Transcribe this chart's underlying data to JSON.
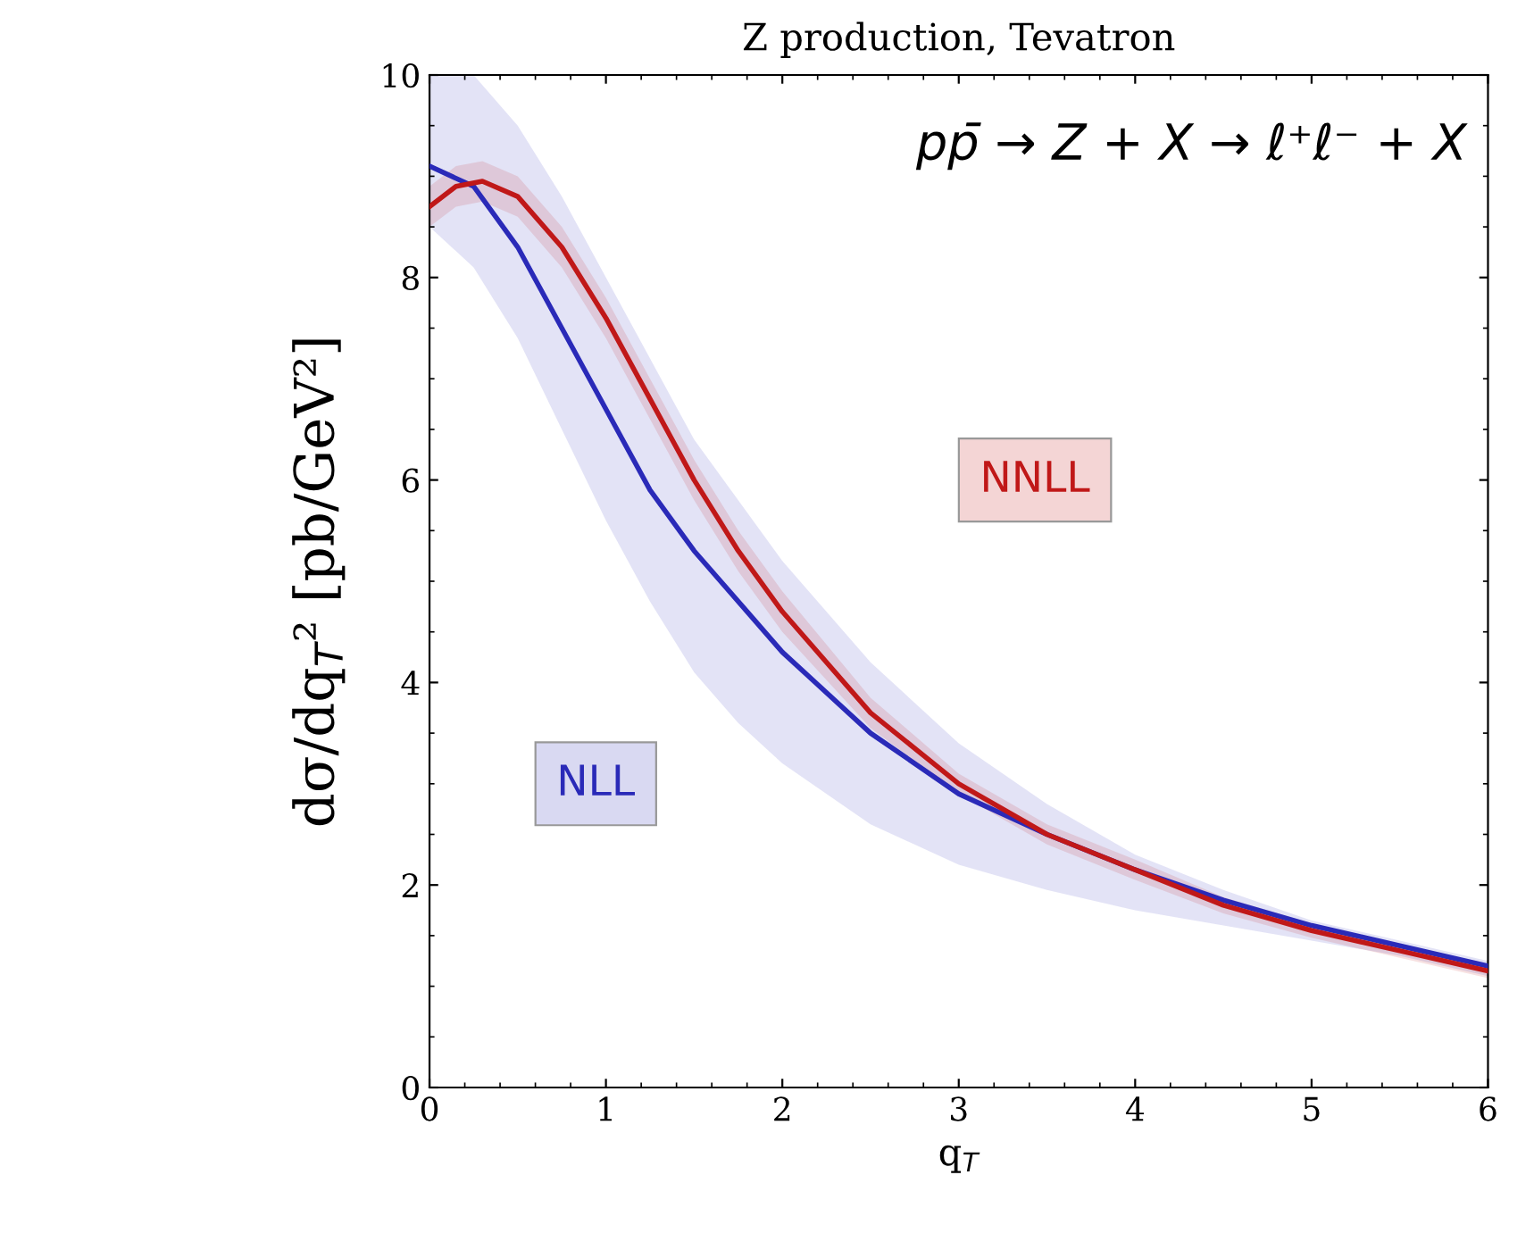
{
  "chart_data": {
    "type": "line",
    "title": "Z production, Tevatron",
    "xlabel": "q$_{T}$",
    "ylabel": "dσ/dq$_{T}$² [pb/GeV²]",
    "annotations": [
      "pp̄ → Z + X → ℓ⁺ℓ⁻ + X"
    ],
    "xlim": [
      0,
      6
    ],
    "ylim": [
      0,
      10
    ],
    "xticks": [
      0,
      1,
      2,
      3,
      4,
      5,
      6
    ],
    "yticks": [
      0,
      2,
      4,
      6,
      8,
      10
    ],
    "grid": false,
    "legend": false,
    "marker": "none",
    "line_style": "solid",
    "series": [
      {
        "name": "NLL",
        "color": "#2a2ab8",
        "x": [
          0,
          0.25,
          0.5,
          0.75,
          1.0,
          1.25,
          1.5,
          1.75,
          2.0,
          2.5,
          3.0,
          3.5,
          4.0,
          4.5,
          5.0,
          5.5,
          6.0
        ],
        "values": [
          9.1,
          8.9,
          8.3,
          7.5,
          6.7,
          5.9,
          5.3,
          4.8,
          4.3,
          3.5,
          2.9,
          2.5,
          2.15,
          1.85,
          1.6,
          1.4,
          1.2
        ],
        "lower": [
          8.5,
          8.1,
          7.4,
          6.5,
          5.6,
          4.8,
          4.1,
          3.6,
          3.2,
          2.6,
          2.2,
          1.95,
          1.75,
          1.6,
          1.45,
          1.3,
          1.1
        ],
        "upper": [
          10,
          10,
          9.5,
          8.8,
          8.0,
          7.2,
          6.4,
          5.8,
          5.2,
          4.2,
          3.4,
          2.8,
          2.3,
          1.95,
          1.65,
          1.45,
          1.25
        ]
      },
      {
        "name": "NNLL",
        "color": "#c01818",
        "x": [
          0,
          0.15,
          0.3,
          0.5,
          0.75,
          1.0,
          1.25,
          1.5,
          1.75,
          2.0,
          2.5,
          3.0,
          3.5,
          4.0,
          4.5,
          5.0,
          5.5,
          6.0
        ],
        "values": [
          8.7,
          8.9,
          8.95,
          8.8,
          8.3,
          7.6,
          6.8,
          6.0,
          5.3,
          4.7,
          3.7,
          3.0,
          2.5,
          2.15,
          1.8,
          1.55,
          1.35,
          1.15
        ],
        "lower": [
          8.5,
          8.7,
          8.75,
          8.6,
          8.1,
          7.4,
          6.6,
          5.8,
          5.1,
          4.5,
          3.55,
          2.9,
          2.4,
          2.05,
          1.72,
          1.48,
          1.28,
          1.08
        ],
        "upper": [
          8.9,
          9.1,
          9.15,
          9.0,
          8.5,
          7.8,
          7.0,
          6.2,
          5.5,
          4.9,
          3.85,
          3.1,
          2.6,
          2.25,
          1.88,
          1.62,
          1.42,
          1.22
        ]
      }
    ]
  }
}
